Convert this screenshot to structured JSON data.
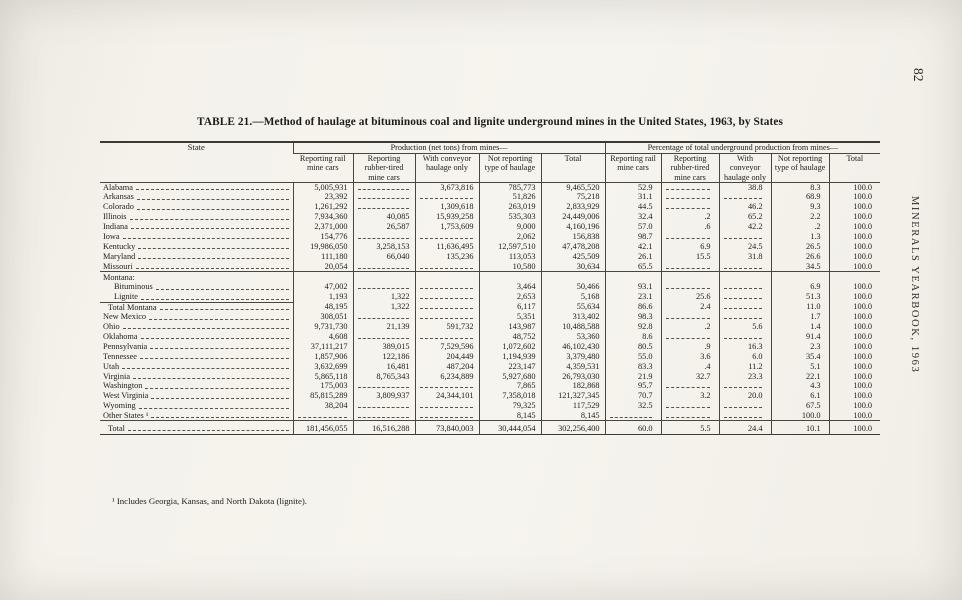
{
  "page": {
    "number": "82",
    "side_text": "MINERALS YEARBOOK, 1963",
    "title": "TABLE 21.—Method of haulage at bituminous coal and lignite underground mines in the United States, 1963, by States",
    "footnote": "¹ Includes Georgia, Kansas, and North Dakota (lignite)."
  },
  "table": {
    "state_header": "State",
    "groups": [
      {
        "label": "Production (net tons) from mines—"
      },
      {
        "label": "Percentage of total underground production from mines—"
      }
    ],
    "sub_headers": [
      "Reporting rail mine cars",
      "Reporting rubber-tired mine cars",
      "With conveyor haulage only",
      "Not reporting type of haulage",
      "Total"
    ],
    "rows": [
      {
        "label": "Alabama",
        "values": [
          "5,005,931",
          "",
          "3,673,816",
          "785,773",
          "9,465,520",
          "52.9",
          "",
          "38.8",
          "8.3",
          "100.0"
        ]
      },
      {
        "label": "Arkansas",
        "values": [
          "23,392",
          "",
          "",
          "51,826",
          "75,218",
          "31.1",
          "",
          "",
          "68.9",
          "100.0"
        ]
      },
      {
        "label": "Colorado",
        "values": [
          "1,261,292",
          "",
          "1,309,618",
          "263,019",
          "2,833,929",
          "44.5",
          "",
          "46.2",
          "9.3",
          "100.0"
        ]
      },
      {
        "label": "Illinois",
        "values": [
          "7,934,360",
          "40,085",
          "15,939,258",
          "535,303",
          "24,449,006",
          "32.4",
          ".2",
          "65.2",
          "2.2",
          "100.0"
        ]
      },
      {
        "label": "Indiana",
        "values": [
          "2,371,000",
          "26,587",
          "1,753,609",
          "9,000",
          "4,160,196",
          "57.0",
          ".6",
          "42.2",
          ".2",
          "100.0"
        ]
      },
      {
        "label": "Iowa",
        "values": [
          "154,776",
          "",
          "",
          "2,062",
          "156,838",
          "98.7",
          "",
          "",
          "1.3",
          "100.0"
        ]
      },
      {
        "label": "Kentucky",
        "values": [
          "19,986,050",
          "3,258,153",
          "11,636,495",
          "12,597,510",
          "47,478,208",
          "42.1",
          "6.9",
          "24.5",
          "26.5",
          "100.0"
        ]
      },
      {
        "label": "Maryland",
        "values": [
          "111,180",
          "66,040",
          "135,236",
          "113,053",
          "425,509",
          "26.1",
          "15.5",
          "31.8",
          "26.6",
          "100.0"
        ]
      },
      {
        "label": "Missouri",
        "values": [
          "20,054",
          "",
          "",
          "10,580",
          "30,634",
          "65.5",
          "",
          "",
          "34.5",
          "100.0"
        ]
      },
      {
        "label": "Montana:",
        "group": true,
        "sep": true
      },
      {
        "label": "Bituminous",
        "indent": true,
        "values": [
          "47,002",
          "",
          "",
          "3,464",
          "50,466",
          "93.1",
          "",
          "",
          "6.9",
          "100.0"
        ]
      },
      {
        "label": "Lignite",
        "indent": true,
        "values": [
          "1,193",
          "1,322",
          "",
          "2,653",
          "5,168",
          "23.1",
          "25.6",
          "",
          "51.3",
          "100.0"
        ]
      },
      {
        "label": "Total Montana",
        "subtotal": true,
        "values": [
          "48,195",
          "1,322",
          "",
          "6,117",
          "55,634",
          "86.6",
          "2.4",
          "",
          "11.0",
          "100.0"
        ]
      },
      {
        "label": "New Mexico",
        "values": [
          "308,051",
          "",
          "",
          "5,351",
          "313,402",
          "98.3",
          "",
          "",
          "1.7",
          "100.0"
        ]
      },
      {
        "label": "Ohio",
        "values": [
          "9,731,730",
          "21,139",
          "591,732",
          "143,987",
          "10,488,588",
          "92.8",
          ".2",
          "5.6",
          "1.4",
          "100.0"
        ]
      },
      {
        "label": "Oklahoma",
        "values": [
          "4,608",
          "",
          "",
          "48,752",
          "53,360",
          "8.6",
          "",
          "",
          "91.4",
          "100.0"
        ]
      },
      {
        "label": "Pennsylvania",
        "values": [
          "37,111,217",
          "389,015",
          "7,529,596",
          "1,072,602",
          "46,102,430",
          "80.5",
          ".9",
          "16.3",
          "2.3",
          "100.0"
        ]
      },
      {
        "label": "Tennessee",
        "values": [
          "1,857,906",
          "122,186",
          "204,449",
          "1,194,939",
          "3,379,480",
          "55.0",
          "3.6",
          "6.0",
          "35.4",
          "100.0"
        ]
      },
      {
        "label": "Utah",
        "values": [
          "3,632,699",
          "16,481",
          "487,204",
          "223,147",
          "4,359,531",
          "83.3",
          ".4",
          "11.2",
          "5.1",
          "100.0"
        ]
      },
      {
        "label": "Virginia",
        "values": [
          "5,865,118",
          "8,765,343",
          "6,234,889",
          "5,927,680",
          "26,793,030",
          "21.9",
          "32.7",
          "23.3",
          "22.1",
          "100.0"
        ]
      },
      {
        "label": "Washington",
        "values": [
          "175,003",
          "",
          "",
          "7,865",
          "182,868",
          "95.7",
          "",
          "",
          "4.3",
          "100.0"
        ]
      },
      {
        "label": "West Virginia",
        "values": [
          "85,815,289",
          "3,809,937",
          "24,344,101",
          "7,358,018",
          "121,327,345",
          "70.7",
          "3.2",
          "20.0",
          "6.1",
          "100.0"
        ]
      },
      {
        "label": "Wyoming",
        "values": [
          "38,204",
          "",
          "",
          "79,325",
          "117,529",
          "32.5",
          "",
          "",
          "67.5",
          "100.0"
        ]
      },
      {
        "label": "Other States ¹",
        "values": [
          "",
          "",
          "",
          "8,145",
          "8,145",
          "",
          "",
          "",
          "100.0",
          "100.0"
        ]
      },
      {
        "label": "Total",
        "grand": true,
        "values": [
          "181,456,055",
          "16,516,288",
          "73,840,003",
          "30,444,054",
          "302,256,400",
          "60.0",
          "5.5",
          "24.4",
          "10.1",
          "100.0"
        ]
      }
    ]
  }
}
